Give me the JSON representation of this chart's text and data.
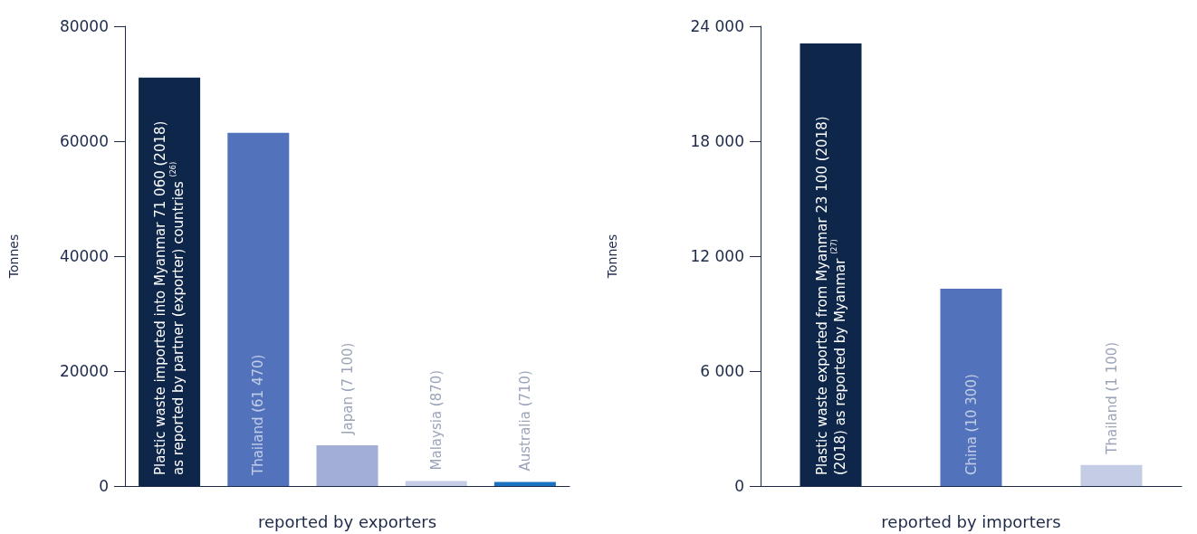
{
  "chart_data": [
    {
      "type": "bar",
      "xlabel": "reported by exporters",
      "ylabel": "Tonnes",
      "categories": [
        null,
        null,
        null,
        null,
        null
      ],
      "values": [
        71060,
        61470,
        7100,
        870,
        710
      ],
      "colors": [
        "#0d2649",
        "#5273bb",
        "#a2aed6",
        "#c5cde6",
        "#1a73c1"
      ],
      "value_labels": [
        "Plastic waste imported into Myanmar 71 060 (2018)\nas reported by partner (exporter) countries $^{(26)}$",
        "Thailand (61 470)",
        "Japan (7 100)",
        "Malaysia (870)",
        "Australia (710)"
      ],
      "ylim": [
        0,
        80000
      ],
      "yticks": [
        0,
        20000,
        40000,
        60000,
        80000
      ]
    },
    {
      "type": "bar",
      "xlabel": "reported by importers",
      "ylabel": "Tonnes",
      "categories": [
        null,
        null,
        null
      ],
      "values": [
        23100,
        10300,
        1100
      ],
      "colors": [
        "#0d2649",
        "#5273bb",
        "#c5cde6"
      ],
      "value_labels": [
        "Plastic waste exported from Myanmar 23 100 (2018)\n(2018) as reported by Myanmar $^{(27)}$",
        "China (10 300)",
        "Thailand (1 100)"
      ],
      "ylim": [
        0,
        24000
      ],
      "yticks": [
        0,
        {
          "value": 6000,
          "label": "6 000"
        },
        {
          "value": 12000,
          "label": "12 000"
        },
        {
          "value": 18000,
          "label": "18 000"
        },
        {
          "value": 24000,
          "label": "24 000"
        }
      ]
    }
  ]
}
